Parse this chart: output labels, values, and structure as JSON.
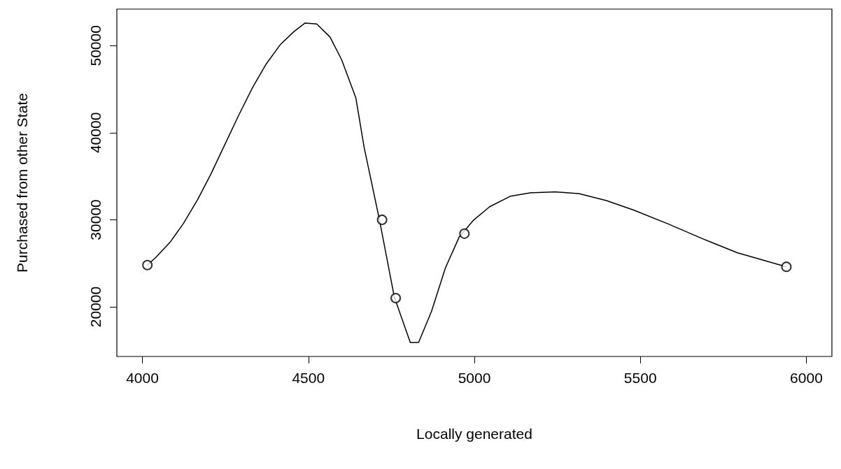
{
  "chart_data": {
    "type": "line",
    "xlabel": "Locally generated",
    "ylabel": "Purchased from other State",
    "xlim": [
      3923,
      6077
    ],
    "ylim": [
      14300,
      54200
    ],
    "xticks": [
      4000,
      4500,
      5000,
      5500,
      6000
    ],
    "yticks": [
      20000,
      30000,
      40000,
      50000
    ],
    "grid": false,
    "series": [
      {
        "color": "#000000",
        "marker": "none",
        "line_style": "solid",
        "x": [
          4015,
          4041,
          4083,
          4124,
          4166,
          4207,
          4249,
          4290,
          4332,
          4373,
          4415,
          4456,
          4490,
          4525,
          4565,
          4600,
          4643,
          4668,
          4714,
          4759,
          4807,
          4832,
          4871,
          4913,
          4954,
          4996,
          5046,
          5108,
          5170,
          5243,
          5315,
          5398,
          5481,
          5585,
          5689,
          5793,
          5876,
          5940
        ],
        "values": [
          24800,
          25700,
          27400,
          29600,
          32300,
          35300,
          38700,
          42000,
          45200,
          47900,
          50100,
          51600,
          52600,
          52500,
          51000,
          48400,
          44000,
          38300,
          30000,
          21100,
          15900,
          15900,
          19500,
          24500,
          28000,
          29900,
          31500,
          32700,
          33100,
          33200,
          33000,
          32200,
          31100,
          29500,
          27800,
          26200,
          25300,
          24600
        ]
      },
      {
        "type": "scatter",
        "color": "#000000",
        "marker": "circle",
        "x": [
          4015,
          4722,
          4763,
          4970,
          5940
        ],
        "values": [
          24800,
          30000,
          21000,
          28400,
          24600
        ]
      }
    ]
  }
}
